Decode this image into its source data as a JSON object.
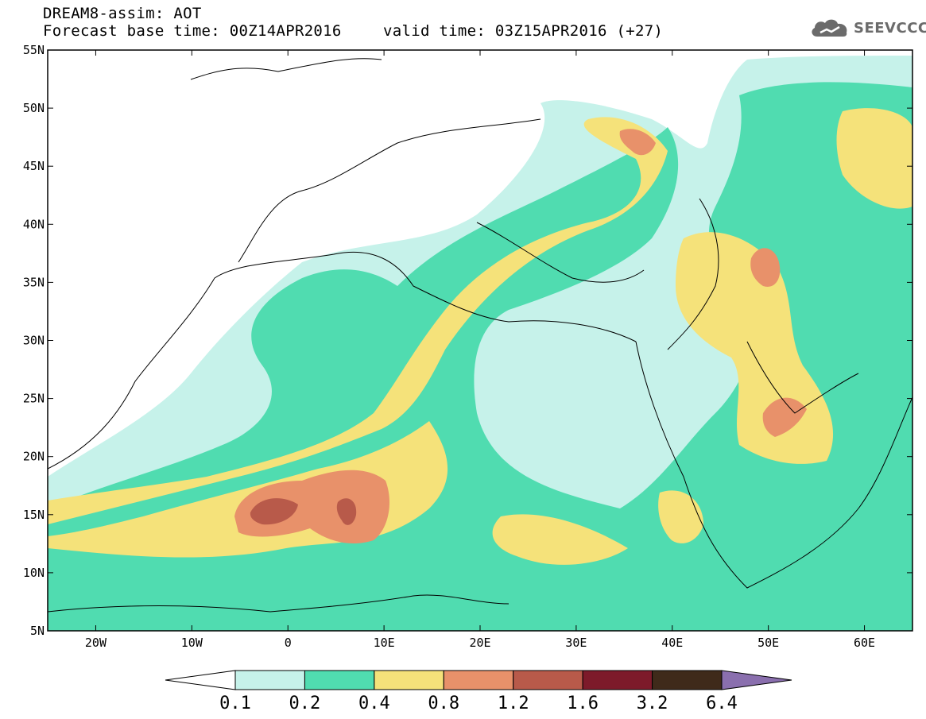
{
  "header": {
    "line1": "DREAM8-assim: AOT",
    "line2": "Forecast base time: 00Z14APR2016",
    "valid": "valid time: 03Z15APR2016 (+27)"
  },
  "logo": {
    "text": "SEEVCCC",
    "icon": "cloud-icon"
  },
  "map": {
    "lon_range": [
      -25,
      65
    ],
    "lat_range": [
      5,
      55
    ],
    "lat_ticks": [
      "5N",
      "10N",
      "15N",
      "20N",
      "25N",
      "30N",
      "35N",
      "40N",
      "45N",
      "50N",
      "55N"
    ],
    "lon_ticks": [
      "20W",
      "10W",
      "0",
      "10E",
      "20E",
      "30E",
      "40E",
      "50E",
      "60E"
    ]
  },
  "colorbar": {
    "levels": [
      "0.1",
      "0.2",
      "0.4",
      "0.8",
      "1.2",
      "1.6",
      "3.2",
      "6.4"
    ],
    "colors": [
      "#c6f2ea",
      "#50dcb0",
      "#f5e27a",
      "#e8916a",
      "#b85a4a",
      "#7d1a2a",
      "#3f2a1a",
      "#8a6fae"
    ]
  }
}
